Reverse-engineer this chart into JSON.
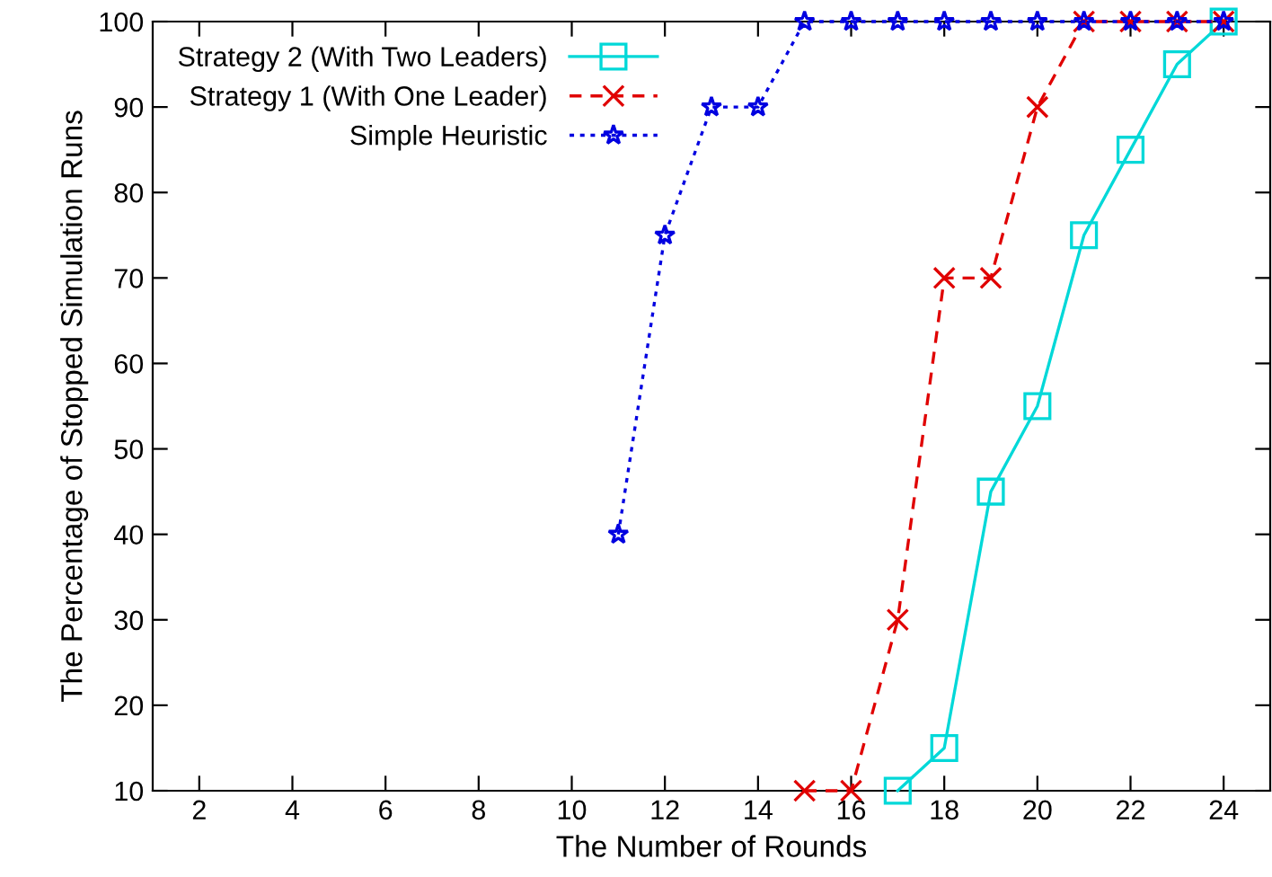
{
  "chart_data": {
    "type": "line",
    "xlabel": "The Number of Rounds",
    "ylabel": "The Percentage of Stopped Simulation Runs",
    "xlim": [
      1,
      25
    ],
    "xticks": [
      2,
      4,
      6,
      8,
      10,
      12,
      14,
      16,
      18,
      20,
      22,
      24
    ],
    "ylim": [
      10,
      100
    ],
    "yticks": [
      10,
      20,
      30,
      40,
      50,
      60,
      70,
      80,
      90,
      100
    ],
    "grid": false,
    "legend": "top left",
    "series": [
      {
        "name": "Strategy 2 (With Two Leaders)",
        "color": "#00d8d8",
        "marker": "square",
        "line_style": "solid",
        "x": [
          17,
          18,
          19,
          20,
          21,
          22,
          23,
          24
        ],
        "values": [
          10,
          15,
          45,
          55,
          75,
          85,
          95,
          100
        ]
      },
      {
        "name": "Strategy 1 (With One Leader)",
        "color": "#e00000",
        "marker": "cross",
        "line_style": "dashed",
        "x": [
          15,
          16,
          17,
          18,
          19,
          20,
          21,
          22,
          23,
          24
        ],
        "values": [
          10,
          10,
          30,
          70,
          70,
          90,
          100,
          100,
          100,
          100
        ]
      },
      {
        "name": "Simple Heuristic",
        "color": "#0000e0",
        "marker": "star",
        "line_style": "dotted",
        "x": [
          11,
          12,
          13,
          14,
          15,
          16,
          17,
          18,
          19,
          20,
          21,
          22,
          23,
          24
        ],
        "values": [
          40,
          75,
          90,
          90,
          100,
          100,
          100,
          100,
          100,
          100,
          100,
          100,
          100,
          100
        ]
      }
    ]
  }
}
